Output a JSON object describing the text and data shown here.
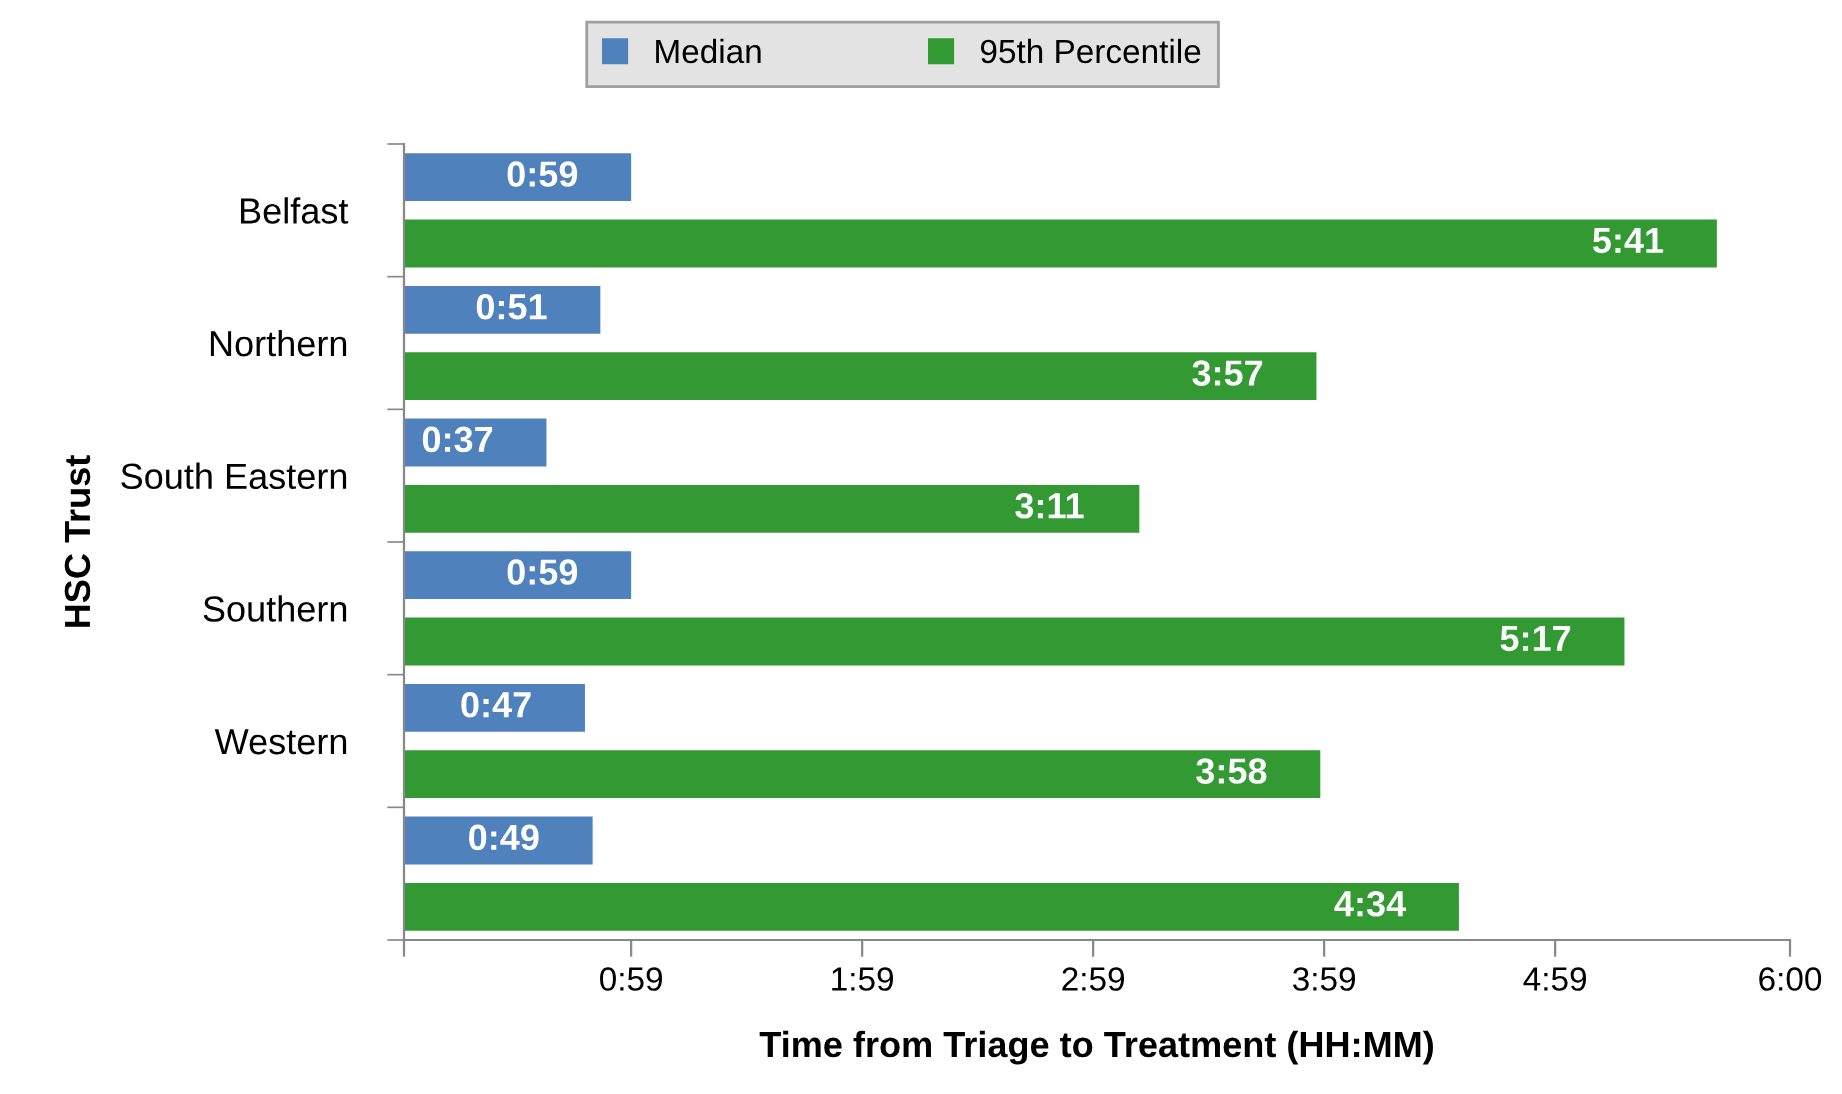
{
  "chart_data": {
    "type": "bar",
    "orientation": "horizontal",
    "xlabel": "Time from Triage to Treatment (HH:MM)",
    "ylabel": "HSC Trust",
    "categories": [
      "Belfast",
      "Northern",
      "South Eastern",
      "Southern",
      "Western",
      null
    ],
    "series": [
      {
        "name": "Median",
        "color": "#4f81bd",
        "values": [
          59,
          51,
          37,
          59,
          47,
          49
        ],
        "value_labels": [
          "0:59",
          "0:51",
          "0:37",
          "0:59",
          "0:47",
          "0:49"
        ]
      },
      {
        "name": "95th Percentile",
        "color": "#339933",
        "values": [
          341,
          237,
          191,
          317,
          238,
          274
        ],
        "value_labels": [
          "5:41",
          "3:57",
          "3:11",
          "5:17",
          "3:58",
          "4:34"
        ]
      }
    ],
    "xlim": [
      0,
      360
    ],
    "xticks": [
      {
        "value": 0,
        "label": null
      },
      {
        "value": 59,
        "label": "0:59"
      },
      {
        "value": 119,
        "label": "1:59"
      },
      {
        "value": 179,
        "label": "2:59"
      },
      {
        "value": 239,
        "label": "3:59"
      },
      {
        "value": 299,
        "label": "4:59"
      },
      {
        "value": 360,
        "label": "6:00"
      }
    ],
    "grid": false,
    "legend": "top"
  }
}
